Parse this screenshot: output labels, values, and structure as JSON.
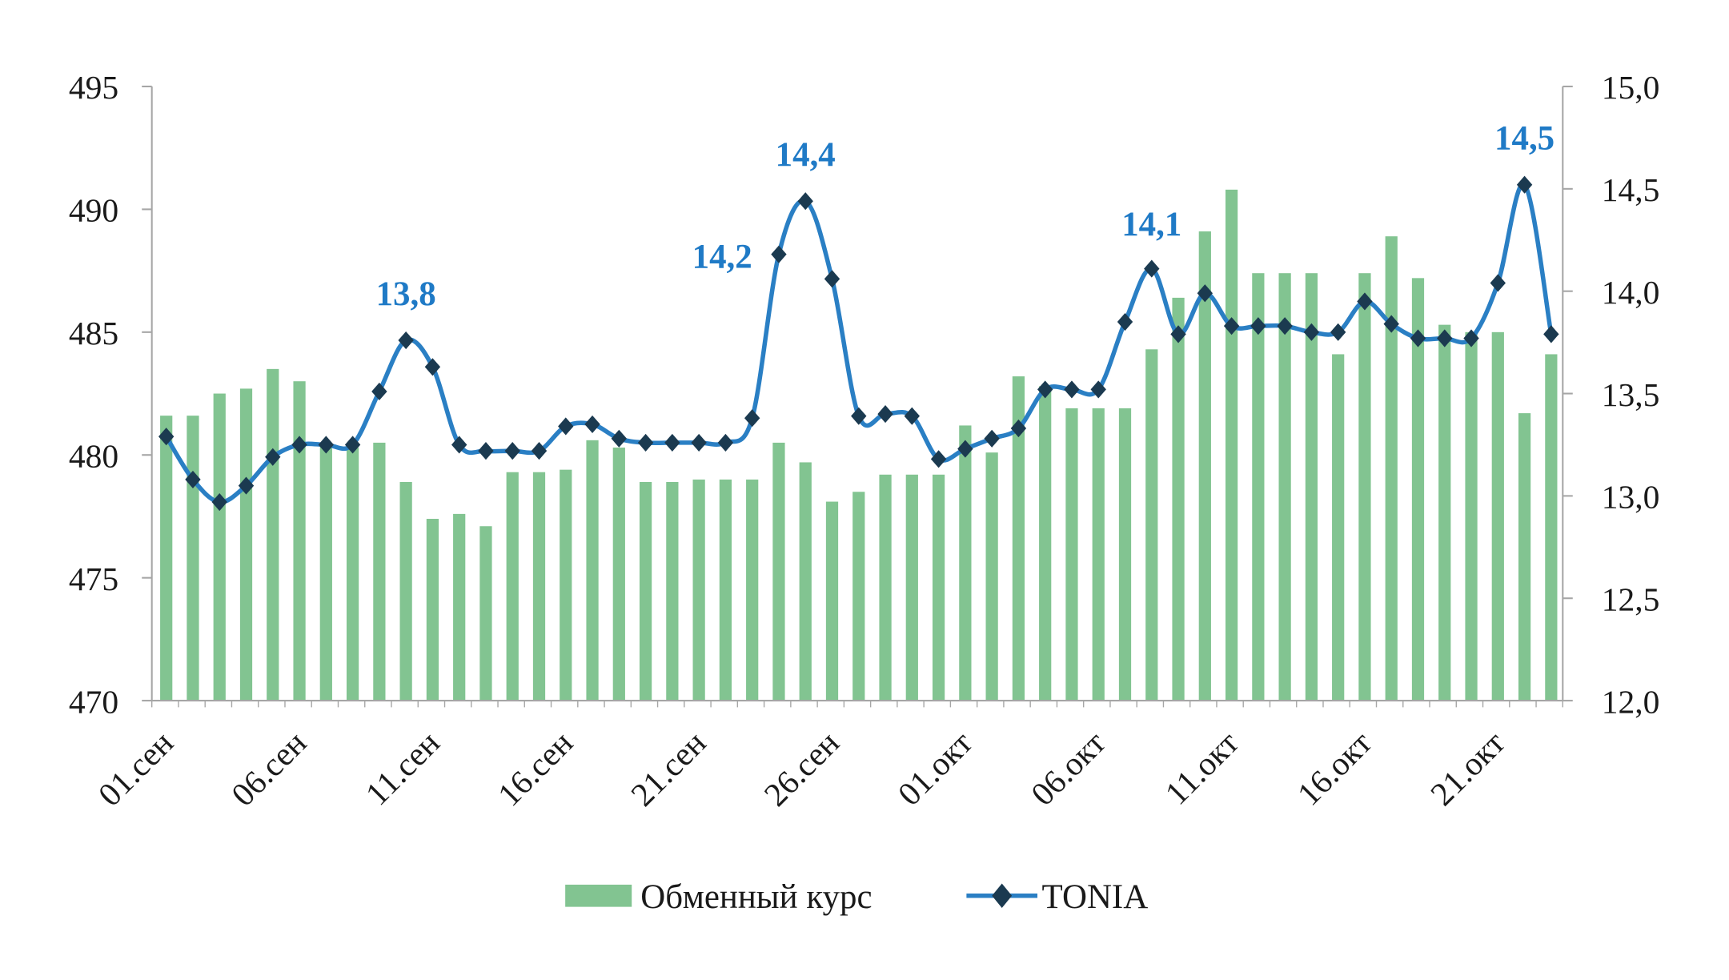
{
  "chart_data": {
    "type": "bar+line",
    "title": "",
    "colors": {
      "bars": "#82c491",
      "line": "#2a7fc4",
      "markers": "#1b3a50",
      "annotations": "#1f7ac6",
      "axis": "#a6a6a6"
    },
    "grid": false,
    "legend_placement": "bottom",
    "left_axis": {
      "ylim": [
        470,
        495
      ],
      "ticks": [
        "470",
        "475",
        "480",
        "485",
        "490",
        "495"
      ]
    },
    "right_axis": {
      "ylim": [
        12.0,
        15.0
      ],
      "ticks": [
        "12,0",
        "12,5",
        "13,0",
        "13,5",
        "14,0",
        "14,5",
        "15,0"
      ]
    },
    "x_tick_labels": [
      "01.сен",
      "06.сен",
      "11.сен",
      "16.сен",
      "21.сен",
      "26.сен",
      "01.окт",
      "06.окт",
      "11.окт",
      "16.окт",
      "21.окт"
    ],
    "series": [
      {
        "name": "Обменный курс",
        "type": "bar",
        "axis": "left",
        "values": [
          481.6,
          481.6,
          482.5,
          482.7,
          483.5,
          483.0,
          480.4,
          480.3,
          480.5,
          478.9,
          477.4,
          477.6,
          477.1,
          479.3,
          479.3,
          479.4,
          480.6,
          480.3,
          478.9,
          478.9,
          479.0,
          479.0,
          479.0,
          480.5,
          479.7,
          478.1,
          478.5,
          479.2,
          479.2,
          479.2,
          481.2,
          480.1,
          483.2,
          482.8,
          481.9,
          481.9,
          481.9,
          484.3,
          486.4,
          489.1,
          490.8,
          487.4,
          487.4,
          487.4,
          484.1,
          487.4,
          488.9,
          487.2,
          485.3,
          485.0,
          485.0,
          481.7,
          484.1
        ]
      },
      {
        "name": "TONIA",
        "type": "line",
        "axis": "right",
        "values": [
          13.29,
          13.08,
          12.97,
          13.05,
          13.19,
          13.25,
          13.25,
          13.25,
          13.51,
          13.76,
          13.63,
          13.25,
          13.22,
          13.22,
          13.22,
          13.34,
          13.35,
          13.28,
          13.26,
          13.26,
          13.26,
          13.26,
          13.38,
          14.18,
          14.44,
          14.06,
          13.39,
          13.4,
          13.39,
          13.18,
          13.23,
          13.28,
          13.33,
          13.52,
          13.52,
          13.52,
          13.85,
          14.11,
          13.79,
          13.99,
          13.83,
          13.83,
          13.83,
          13.8,
          13.8,
          13.95,
          13.84,
          13.77,
          13.77,
          13.77,
          14.04,
          14.52,
          13.79
        ]
      }
    ],
    "annotations": [
      {
        "index": 9,
        "text": "13,8"
      },
      {
        "index": 23,
        "text": "14,2"
      },
      {
        "index": 24,
        "text": "14,4"
      },
      {
        "index": 37,
        "text": "14,1"
      },
      {
        "index": 51,
        "text": "14,5"
      }
    ]
  }
}
